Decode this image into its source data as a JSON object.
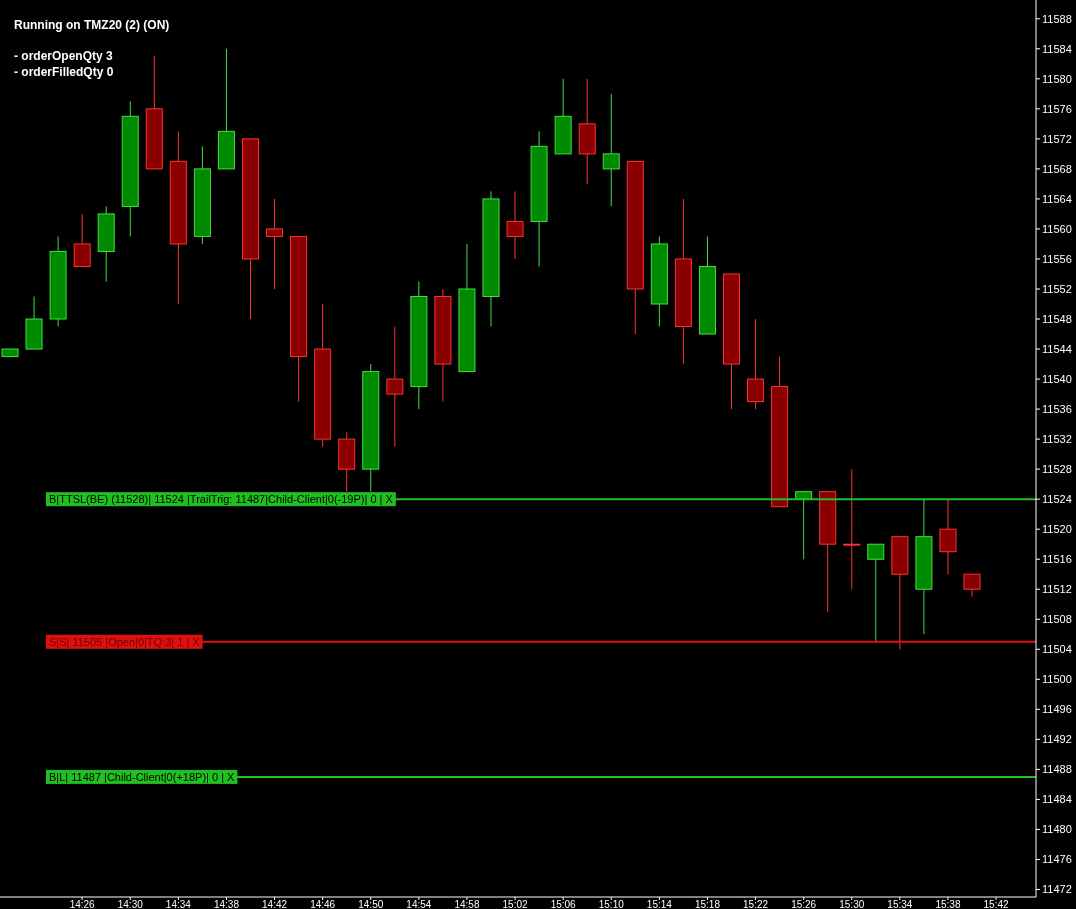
{
  "chart_data": {
    "type": "candlestick",
    "title": "Running on TMZ20 (2) (ON)",
    "annotations": [
      "- orderOpenQty 3",
      "- orderFilledQty 0"
    ],
    "categories": [
      null,
      null,
      null,
      "14:26",
      null,
      "14:30",
      null,
      "14:34",
      null,
      "14:38",
      null,
      "14:42",
      null,
      "14:46",
      null,
      "14:50",
      null,
      "14:54",
      null,
      "14:58",
      null,
      "15:02",
      null,
      "15:06",
      null,
      "15:10",
      null,
      "15:14",
      null,
      "15:18",
      null,
      "15:22",
      null,
      "15:26",
      null,
      "15:30",
      null,
      "15:34",
      null,
      "15:38",
      null,
      "15:42"
    ],
    "ohlc": [
      [
        11543,
        11544,
        11543,
        11544
      ],
      [
        11544,
        11551,
        11544,
        11548
      ],
      [
        11548,
        11559,
        11547,
        11557
      ],
      [
        11558,
        11562,
        11555,
        11555
      ],
      [
        11557,
        11563,
        11553,
        11562
      ],
      [
        11563,
        11577,
        11559,
        11575
      ],
      [
        11576,
        11583,
        11568,
        11568
      ],
      [
        11569,
        11573,
        11550,
        11558
      ],
      [
        11559,
        11571,
        11558,
        11568
      ],
      [
        11568,
        11584,
        11568,
        11573
      ],
      [
        11572,
        11572,
        11548,
        11556
      ],
      [
        11560,
        11564,
        11552,
        11559
      ],
      [
        11559,
        11559,
        11537,
        11543
      ],
      [
        11544,
        11550,
        11531,
        11532
      ],
      [
        11532,
        11533,
        11525,
        11528
      ],
      [
        11528,
        11542,
        11525,
        11541
      ],
      [
        11540,
        11547,
        11531,
        11538
      ],
      [
        11539,
        11553,
        11536,
        11551
      ],
      [
        11551,
        11552,
        11537,
        11542
      ],
      [
        11541,
        11558,
        11541,
        11552
      ],
      [
        11551,
        11565,
        11547,
        11564
      ],
      [
        11561,
        11565,
        11556,
        11559
      ],
      [
        11561,
        11573,
        11555,
        11571
      ],
      [
        11570,
        11580,
        11570,
        11575
      ],
      [
        11574,
        11580,
        11566,
        11570
      ],
      [
        11568,
        11578,
        11563,
        11570
      ],
      [
        11569,
        11569,
        11546,
        11552
      ],
      [
        11550,
        11559,
        11547,
        11558
      ],
      [
        11556,
        11564,
        11542,
        11547
      ],
      [
        11546,
        11559,
        11546,
        11555
      ],
      [
        11554,
        11554,
        11536,
        11542
      ],
      [
        11540,
        11548,
        11536,
        11537
      ],
      [
        11539,
        11543,
        11523,
        11523
      ],
      [
        11524,
        11525,
        11516,
        11525
      ],
      [
        11525,
        11525,
        11509,
        11518
      ],
      [
        11518,
        11528,
        11512,
        11518
      ],
      [
        11516,
        11518,
        11505,
        11518
      ],
      [
        11519,
        11519,
        11504,
        11514
      ],
      [
        11512,
        11524,
        11506,
        11519
      ],
      [
        11520,
        11524,
        11514,
        11517
      ],
      [
        11514,
        11514,
        11511,
        11512
      ],
      null
    ],
    "ylim": [
      11471,
      11590.5
    ],
    "yticks": [
      11472,
      11476,
      11480,
      11484,
      11488,
      11492,
      11496,
      11500,
      11504,
      11508,
      11512,
      11516,
      11520,
      11524,
      11528,
      11532,
      11536,
      11540,
      11544,
      11548,
      11552,
      11556,
      11560,
      11564,
      11568,
      11572,
      11576,
      11580,
      11584,
      11588
    ],
    "ref_lines": [
      {
        "axis": "y",
        "value": 11524,
        "label": "B|TTSL(BE) (11528)| 11524 |TrailTrig: 11487|Child-Client|0(-19P)| 0 | X",
        "color": "#20c020"
      },
      {
        "axis": "y",
        "value": 11505,
        "label": "S|S| 11505 |Open|0|TQ:3| 1 | X",
        "color": "#e01010"
      },
      {
        "axis": "y",
        "value": 11487,
        "label": "B|L| 11487 |Child-Client|0(+18P)| 0 | X",
        "color": "#20c020"
      }
    ]
  }
}
